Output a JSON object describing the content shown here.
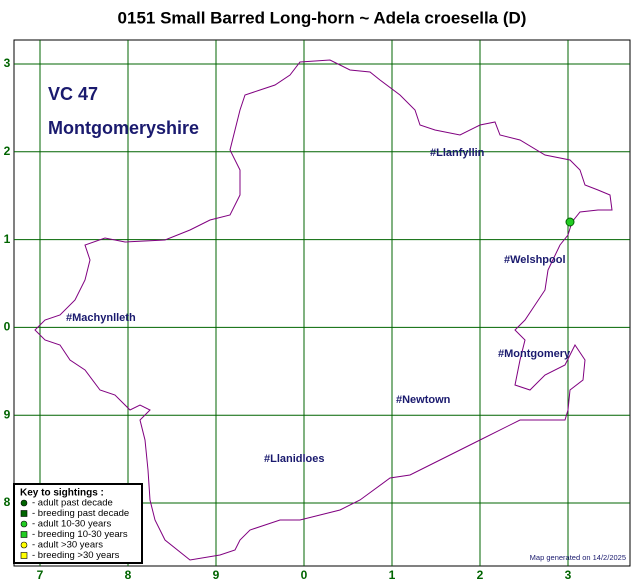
{
  "title": "0151 Small Barred Long-horn ~ Adela croesella (D)",
  "vice_county": {
    "number": "VC 47",
    "name": "Montgomeryshire"
  },
  "grid": {
    "x_labels": [
      "7",
      "8",
      "9",
      "0",
      "1",
      "2",
      "3"
    ],
    "y_labels": [
      "3",
      "2",
      "1",
      "0",
      "9",
      "8"
    ]
  },
  "towns": [
    "#Llanfyllin",
    "#Welshpool",
    "#Machynlleth",
    "#Montgomery",
    "#Newtown",
    "#Llanidloes"
  ],
  "key": {
    "title": "Key to sightings :",
    "entries": [
      "- adult past decade",
      "- breeding past decade",
      "- adult 10-30 years",
      "- breeding 10-30 years",
      "- adult >30 years",
      "- breeding >30 years"
    ]
  },
  "footer": "Map generated on 14/2/2025"
}
